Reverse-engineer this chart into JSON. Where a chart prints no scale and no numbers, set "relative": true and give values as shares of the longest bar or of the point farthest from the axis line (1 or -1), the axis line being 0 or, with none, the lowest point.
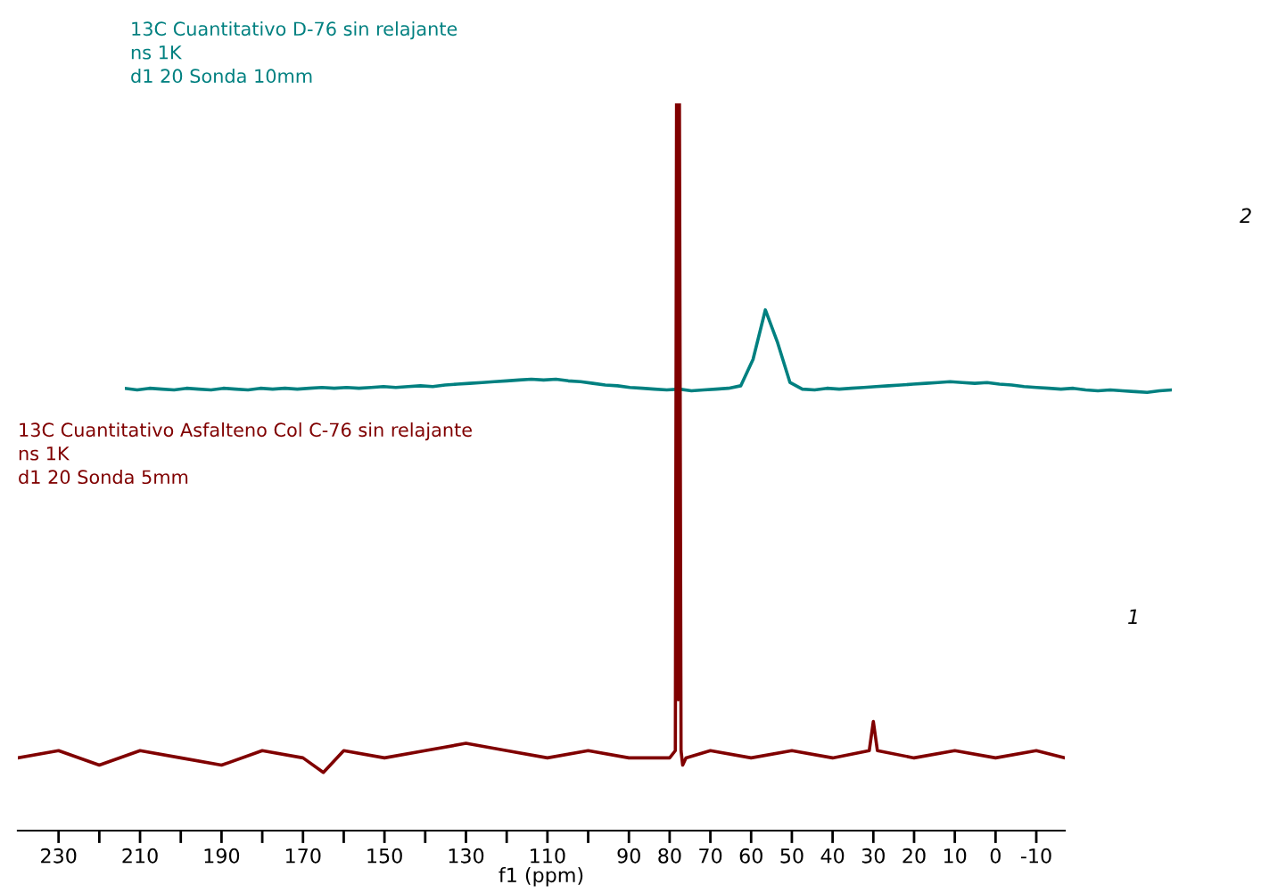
{
  "chart_data": [
    {
      "type": "line",
      "relative": true,
      "grid": false,
      "annotations": [
        "2"
      ],
      "categories": [
        null,
        null,
        null,
        null,
        null,
        null,
        null,
        null,
        null,
        null,
        null,
        null,
        null,
        null,
        null,
        null,
        null,
        null,
        null,
        null,
        null,
        null,
        null,
        null,
        null,
        null,
        null,
        null,
        null,
        null,
        null,
        null,
        null,
        null,
        null,
        null,
        null,
        null,
        null,
        null,
        null,
        null,
        null,
        null,
        null,
        null,
        null,
        null,
        null,
        null,
        null,
        null,
        null,
        null,
        null,
        null,
        null,
        null,
        null,
        null,
        null,
        null,
        null,
        null,
        null,
        null,
        null,
        null,
        null,
        null,
        null,
        null,
        null,
        null,
        null,
        null,
        null,
        null,
        null,
        null,
        null,
        null,
        null,
        null,
        null,
        null
      ],
      "series": [
        {
          "name": "13C Cuantitativo D-76 sin relajante\nns 1K\nd1 20 Sonda 10mm",
          "color": "#008080",
          "values": [
            0.05,
            0.03,
            0.05,
            0.04,
            0.03,
            0.05,
            0.04,
            0.03,
            0.05,
            0.04,
            0.03,
            0.05,
            0.04,
            0.05,
            0.04,
            0.05,
            0.06,
            0.05,
            0.06,
            0.05,
            0.06,
            0.07,
            0.06,
            0.07,
            0.08,
            0.07,
            0.09,
            0.1,
            0.11,
            0.12,
            0.13,
            0.14,
            0.15,
            0.16,
            0.15,
            0.16,
            0.14,
            0.13,
            0.11,
            0.09,
            0.08,
            0.06,
            0.05,
            0.04,
            0.03,
            0.04,
            0.02,
            0.03,
            0.04,
            0.05,
            0.08,
            0.4,
            1.0,
            0.6,
            0.12,
            0.04,
            0.03,
            0.05,
            0.04,
            0.05,
            0.06,
            0.07,
            0.08,
            0.09,
            0.1,
            0.11,
            0.12,
            0.13,
            0.12,
            0.11,
            0.12,
            0.1,
            0.09,
            0.07,
            0.06,
            0.05,
            0.04,
            0.05,
            0.03,
            0.02,
            0.03,
            0.02,
            0.01,
            0.0,
            0.02,
            0.03
          ]
        }
      ]
    },
    {
      "type": "line",
      "relative": true,
      "xlim": [
        240,
        -17
      ],
      "xlabel": "f1 (ppm)",
      "grid": false,
      "annotations": [
        "1"
      ],
      "xticks": [
        230,
        {
          "value": 220,
          "label": null
        },
        210,
        {
          "value": 200,
          "label": null
        },
        190,
        {
          "value": 180,
          "label": null
        },
        170,
        {
          "value": 160,
          "label": null
        },
        150,
        {
          "value": 140,
          "label": null
        },
        130,
        {
          "value": 120,
          "label": null
        },
        110,
        {
          "value": 100,
          "label": null
        },
        90,
        80,
        70,
        60,
        50,
        40,
        30,
        20,
        10,
        0,
        -10
      ],
      "series": [
        {
          "name": "13C Cuantitativo Asfalteno Col C-76 sin relajante\nns 1K\nd1 20 Sonda 5mm",
          "color": "#800000",
          "x": [
            240,
            230,
            220,
            210,
            200,
            190,
            180,
            170,
            165,
            160,
            150,
            140,
            130,
            120,
            110,
            100,
            90,
            80,
            78.6,
            78.3,
            77.9,
            77.6,
            77.2,
            76.8,
            76,
            70,
            60,
            50,
            40,
            31,
            30,
            29,
            20,
            10,
            0,
            -10,
            -17
          ],
          "values": [
            0.1,
            0.11,
            0.09,
            0.11,
            0.1,
            0.09,
            0.11,
            0.1,
            0.08,
            0.11,
            0.1,
            0.11,
            0.12,
            0.11,
            0.1,
            0.11,
            0.1,
            0.1,
            0.11,
            1.0,
            0.18,
            1.0,
            0.11,
            0.09,
            0.1,
            0.11,
            0.1,
            0.11,
            0.1,
            0.11,
            0.15,
            0.11,
            0.1,
            0.11,
            0.1,
            0.11,
            0.1
          ]
        }
      ]
    }
  ]
}
